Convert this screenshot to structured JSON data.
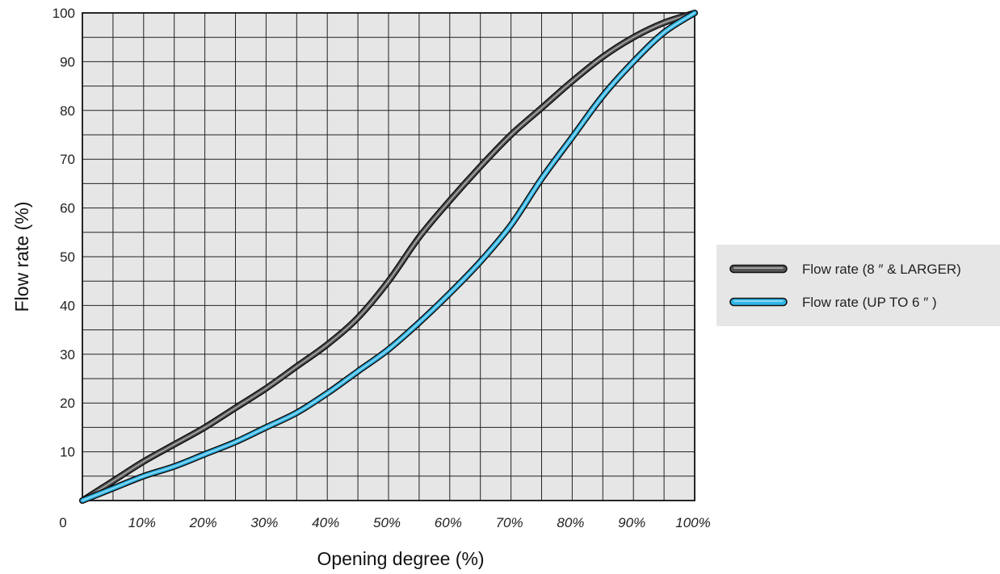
{
  "chart_data": {
    "type": "line",
    "title": "",
    "xlabel": "Opening degree (%)",
    "ylabel": "Flow rate (%)",
    "xlim": [
      0,
      100
    ],
    "ylim": [
      0,
      100
    ],
    "origin_label": "0",
    "x_tick_values": [
      10,
      20,
      30,
      40,
      50,
      60,
      70,
      80,
      90,
      100
    ],
    "x_tick_labels": [
      "10%",
      "20%",
      "30%",
      "40%",
      "50%",
      "60%",
      "70%",
      "80%",
      "90%",
      "100%"
    ],
    "y_tick_values": [
      10,
      20,
      30,
      40,
      50,
      60,
      70,
      80,
      90,
      100
    ],
    "y_tick_labels": [
      "10",
      "20",
      "30",
      "40",
      "50",
      "60",
      "70",
      "80",
      "90",
      "100"
    ],
    "grid": true,
    "grid_minor_step": 5,
    "legend_position": "right",
    "background": "#e6e6e6",
    "series": [
      {
        "name": "Flow rate (8 ″ & LARGER)",
        "color": "#555555",
        "x": [
          0,
          5,
          10,
          15,
          20,
          25,
          30,
          35,
          40,
          45,
          50,
          55,
          60,
          65,
          70,
          75,
          80,
          85,
          90,
          95,
          100
        ],
        "y": [
          0,
          4,
          8,
          11.5,
          15,
          19,
          23,
          27.5,
          32,
          37.5,
          45,
          54,
          61.5,
          68.5,
          75,
          80.5,
          86,
          91,
          95,
          98,
          100
        ]
      },
      {
        "name": "Flow rate (UP TO 6 ″ )",
        "color": "#2fb5e6",
        "x": [
          0,
          5,
          10,
          15,
          20,
          25,
          30,
          35,
          40,
          45,
          50,
          55,
          60,
          65,
          70,
          75,
          80,
          85,
          90,
          95,
          100
        ],
        "y": [
          0,
          2.5,
          5,
          7,
          9.5,
          12,
          15,
          18,
          22,
          26.5,
          31,
          36.5,
          42.5,
          49,
          56.5,
          66,
          74.5,
          83,
          90,
          96,
          100
        ]
      }
    ]
  }
}
